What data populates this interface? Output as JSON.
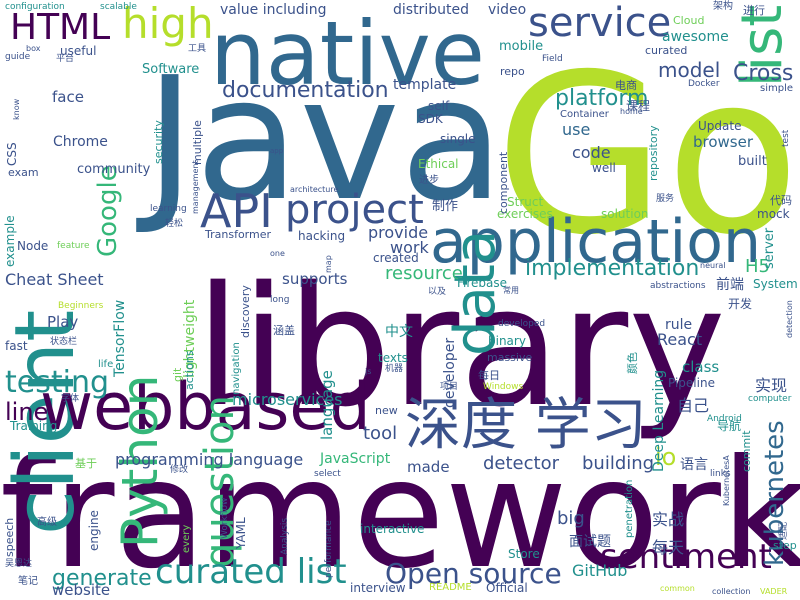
{
  "palette": {
    "purple": "#440154",
    "indigo": "#3b528b",
    "blue": "#31688e",
    "teal": "#21908d",
    "green": "#35b779",
    "lime": "#6ece58",
    "yellow": "#b5de2b"
  },
  "words": [
    {
      "text": "framework",
      "color": "purple"
    },
    {
      "text": "library",
      "color": "purple"
    },
    {
      "text": "Go",
      "color": "yellow"
    },
    {
      "text": "Java",
      "color": "blue"
    },
    {
      "text": "native",
      "color": "blue"
    },
    {
      "text": "client",
      "color": "teal"
    },
    {
      "text": "application",
      "color": "blue"
    },
    {
      "text": "webbased",
      "color": "purple"
    },
    {
      "text": "深度 学习",
      "color": "indigo"
    },
    {
      "text": "data",
      "color": "teal"
    },
    {
      "text": "list",
      "color": "green"
    },
    {
      "text": "service",
      "color": "indigo"
    },
    {
      "text": "high",
      "color": "yellow"
    },
    {
      "text": "Python",
      "color": "green"
    },
    {
      "text": "question",
      "color": "green"
    },
    {
      "text": "curated list",
      "color": "teal"
    },
    {
      "text": "API",
      "color": "indigo"
    },
    {
      "text": "project",
      "color": "indigo"
    },
    {
      "text": "sentiment",
      "color": "purple"
    },
    {
      "text": "kubernetes",
      "color": "blue"
    },
    {
      "text": "testing",
      "color": "teal"
    },
    {
      "text": "Google",
      "color": "green"
    },
    {
      "text": "HTML",
      "color": "purple"
    },
    {
      "text": "Open source",
      "color": "indigo"
    },
    {
      "text": "implementation",
      "color": "teal"
    },
    {
      "text": "documentation",
      "color": "indigo"
    },
    {
      "text": "platform",
      "color": "teal"
    },
    {
      "text": "model",
      "color": "indigo"
    },
    {
      "text": "Cross",
      "color": "indigo"
    },
    {
      "text": "generate",
      "color": "teal"
    },
    {
      "text": "line",
      "color": "purple"
    },
    {
      "text": "io",
      "color": "yellow"
    },
    {
      "text": "programming language",
      "color": "indigo"
    },
    {
      "text": "microservices",
      "color": "teal"
    },
    {
      "text": "resource",
      "color": "green"
    },
    {
      "text": "H5",
      "color": "green"
    },
    {
      "text": "tool",
      "color": "indigo"
    },
    {
      "text": "detector",
      "color": "indigo"
    },
    {
      "text": "building",
      "color": "indigo"
    },
    {
      "text": "big",
      "color": "indigo"
    },
    {
      "text": "Cheat Sheet",
      "color": "indigo"
    },
    {
      "text": "awesome",
      "color": "teal"
    },
    {
      "text": "code",
      "color": "indigo"
    },
    {
      "text": "Deep Learning",
      "color": "teal"
    },
    {
      "text": "React",
      "color": "indigo"
    },
    {
      "text": "use",
      "color": "blue"
    },
    {
      "text": "browser",
      "color": "blue"
    },
    {
      "text": "provide",
      "color": "indigo"
    },
    {
      "text": "work",
      "color": "indigo"
    },
    {
      "text": "JavaScript",
      "color": "green"
    },
    {
      "text": "made",
      "color": "indigo"
    },
    {
      "text": "class",
      "color": "teal"
    },
    {
      "text": "website",
      "color": "indigo"
    },
    {
      "text": "GitHub",
      "color": "teal"
    },
    {
      "text": "supports",
      "color": "indigo"
    },
    {
      "text": "Play",
      "color": "indigo"
    },
    {
      "text": "language",
      "color": "teal"
    },
    {
      "text": "face",
      "color": "indigo"
    },
    {
      "text": "video",
      "color": "indigo"
    },
    {
      "text": "Software",
      "color": "teal"
    },
    {
      "text": "value including",
      "color": "indigo"
    },
    {
      "text": "distributed",
      "color": "indigo"
    },
    {
      "text": "mobile",
      "color": "teal"
    },
    {
      "text": "template",
      "color": "indigo"
    },
    {
      "text": "Chrome",
      "color": "indigo"
    },
    {
      "text": "community",
      "color": "indigo"
    },
    {
      "text": "TensorFlow",
      "color": "teal"
    },
    {
      "text": "Transformer",
      "color": "indigo"
    },
    {
      "text": "hacking",
      "color": "indigo"
    },
    {
      "text": "Node",
      "color": "indigo"
    },
    {
      "text": "lightweight",
      "color": "lime"
    },
    {
      "text": "discovery",
      "color": "indigo"
    },
    {
      "text": "created",
      "color": "indigo"
    },
    {
      "text": "Firebase",
      "color": "teal"
    },
    {
      "text": "实现",
      "color": "indigo"
    },
    {
      "text": "自己",
      "color": "indigo"
    },
    {
      "text": "Pipeline",
      "color": "indigo"
    },
    {
      "text": "导航",
      "color": "teal"
    },
    {
      "text": "实战",
      "color": "indigo"
    },
    {
      "text": "每天",
      "color": "indigo"
    },
    {
      "text": "中文",
      "color": "teal"
    },
    {
      "text": "Update",
      "color": "indigo"
    },
    {
      "text": "built",
      "color": "indigo"
    },
    {
      "text": "solution",
      "color": "lime"
    },
    {
      "text": "exercises",
      "color": "lime"
    },
    {
      "text": "Struct",
      "color": "lime"
    },
    {
      "text": "repo",
      "color": "indigo"
    },
    {
      "text": "SDK",
      "color": "indigo"
    },
    {
      "text": "self",
      "color": "indigo"
    },
    {
      "text": "Container",
      "color": "indigo"
    },
    {
      "text": "component",
      "color": "indigo"
    },
    {
      "text": "single",
      "color": "indigo"
    },
    {
      "text": "well",
      "color": "indigo"
    },
    {
      "text": "Ethical",
      "color": "lime"
    },
    {
      "text": "security",
      "color": "teal"
    },
    {
      "text": "multiple",
      "color": "indigo"
    },
    {
      "text": "rule",
      "color": "indigo"
    },
    {
      "text": "binary",
      "color": "teal"
    },
    {
      "text": "developer",
      "color": "indigo"
    },
    {
      "text": "texts",
      "color": "teal"
    },
    {
      "text": "massive",
      "color": "indigo"
    },
    {
      "text": "commit",
      "color": "teal"
    },
    {
      "text": "server",
      "color": "teal"
    },
    {
      "text": "System",
      "color": "teal"
    },
    {
      "text": "mock",
      "color": "indigo"
    },
    {
      "text": "前端",
      "color": "indigo"
    },
    {
      "text": "开发",
      "color": "indigo"
    },
    {
      "text": "语言",
      "color": "indigo"
    },
    {
      "text": "面试题",
      "color": "indigo"
    },
    {
      "text": "interview",
      "color": "indigo"
    },
    {
      "text": "Official",
      "color": "indigo"
    },
    {
      "text": "Store",
      "color": "teal"
    },
    {
      "text": "interactive",
      "color": "teal"
    },
    {
      "text": "engine",
      "color": "indigo"
    },
    {
      "text": "every",
      "color": "lime"
    },
    {
      "text": "YAML",
      "color": "indigo"
    },
    {
      "text": "Workflow",
      "color": "indigo"
    },
    {
      "text": "Analysis",
      "color": "indigo"
    },
    {
      "text": "performance",
      "color": "indigo"
    },
    {
      "text": "navigation",
      "color": "teal"
    },
    {
      "text": "actions",
      "color": "teal"
    },
    {
      "text": "git",
      "color": "lime"
    },
    {
      "text": "fast",
      "color": "indigo"
    },
    {
      "text": "life",
      "color": "teal"
    },
    {
      "text": "Training",
      "color": "teal"
    },
    {
      "text": "speech",
      "color": "indigo"
    },
    {
      "text": "example",
      "color": "teal"
    },
    {
      "text": "exam",
      "color": "indigo"
    },
    {
      "text": "CSS",
      "color": "indigo"
    },
    {
      "text": "useful",
      "color": "indigo"
    },
    {
      "text": "guide",
      "color": "indigo"
    },
    {
      "text": "configuration",
      "color": "teal"
    },
    {
      "text": "scalable",
      "color": "teal"
    },
    {
      "text": "box",
      "color": "indigo"
    },
    {
      "text": "know",
      "color": "indigo"
    },
    {
      "text": "平台",
      "color": "indigo"
    },
    {
      "text": "工具",
      "color": "indigo"
    },
    {
      "text": "架构",
      "color": "indigo"
    },
    {
      "text": "进行",
      "color": "indigo"
    },
    {
      "text": "Cloud",
      "color": "lime"
    },
    {
      "text": "curated",
      "color": "indigo"
    },
    {
      "text": "Field",
      "color": "indigo"
    },
    {
      "text": "电商",
      "color": "indigo"
    },
    {
      "text": "课程",
      "color": "indigo"
    },
    {
      "text": "Docker",
      "color": "indigo"
    },
    {
      "text": "home",
      "color": "indigo"
    },
    {
      "text": "simple",
      "color": "indigo"
    },
    {
      "text": "test",
      "color": "indigo"
    },
    {
      "text": "repository",
      "color": "teal"
    },
    {
      "text": "app",
      "color": "indigo"
    },
    {
      "text": "进步",
      "color": "indigo"
    },
    {
      "text": "服务",
      "color": "indigo"
    },
    {
      "text": "代码",
      "color": "indigo"
    },
    {
      "text": "制作",
      "color": "indigo"
    },
    {
      "text": "architecture",
      "color": "indigo"
    },
    {
      "text": "management",
      "color": "indigo"
    },
    {
      "text": "learning",
      "color": "indigo"
    },
    {
      "text": "轻松",
      "color": "indigo"
    },
    {
      "text": "feature",
      "color": "lime"
    },
    {
      "text": "one",
      "color": "indigo"
    },
    {
      "text": "map",
      "color": "indigo"
    },
    {
      "text": "long",
      "color": "indigo"
    },
    {
      "text": "Beginners",
      "color": "yellow"
    },
    {
      "text": "以及",
      "color": "indigo"
    },
    {
      "text": "常用",
      "color": "indigo"
    },
    {
      "text": "abstractions",
      "color": "indigo"
    },
    {
      "text": "neural",
      "color": "indigo"
    },
    {
      "text": "developed",
      "color": "indigo"
    },
    {
      "text": "涵盖",
      "color": "indigo"
    },
    {
      "text": "状态栏",
      "color": "indigo"
    },
    {
      "text": "js",
      "color": "indigo"
    },
    {
      "text": "机器",
      "color": "indigo"
    },
    {
      "text": "每日",
      "color": "indigo"
    },
    {
      "text": "项目",
      "color": "indigo"
    },
    {
      "text": "Windows",
      "color": "yellow"
    },
    {
      "text": "字体",
      "color": "indigo"
    },
    {
      "text": "基于",
      "color": "lime"
    },
    {
      "text": "new",
      "color": "indigo"
    },
    {
      "text": "select",
      "color": "indigo"
    },
    {
      "text": "links",
      "color": "indigo"
    },
    {
      "text": "修改",
      "color": "indigo"
    },
    {
      "text": "computer",
      "color": "teal"
    },
    {
      "text": "KubernetesA",
      "color": "indigo"
    },
    {
      "text": "Android",
      "color": "teal"
    },
    {
      "text": "detection",
      "color": "indigo"
    },
    {
      "text": "颜色",
      "color": "teal"
    },
    {
      "text": "高级",
      "color": "indigo"
    },
    {
      "text": "吴恩达",
      "color": "indigo"
    },
    {
      "text": "笔记",
      "color": "indigo"
    },
    {
      "text": "README",
      "color": "yellow"
    },
    {
      "text": "penetration",
      "color": "teal"
    },
    {
      "text": "common",
      "color": "yellow"
    },
    {
      "text": "collection",
      "color": "indigo"
    },
    {
      "text": "VADER",
      "color": "yellow"
    },
    {
      "text": "step",
      "color": "teal"
    },
    {
      "text": "适配",
      "color": "indigo"
    }
  ]
}
